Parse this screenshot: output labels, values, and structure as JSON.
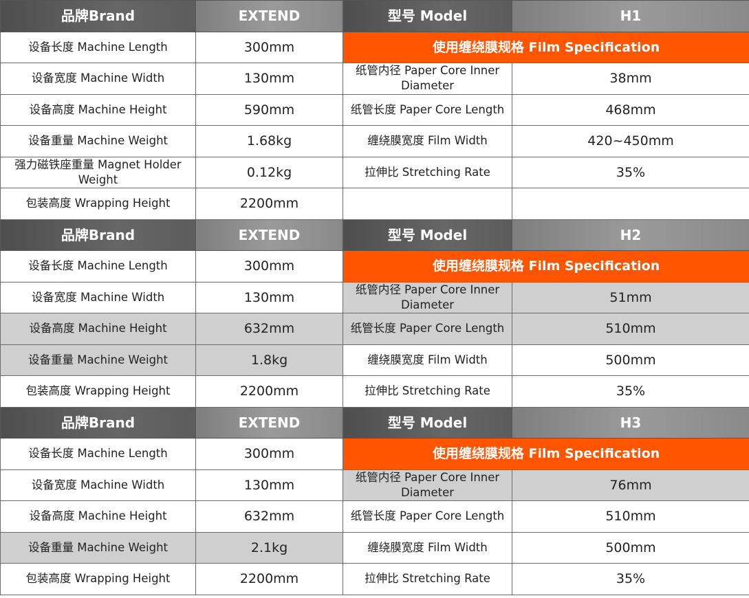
{
  "header_labels": {
    "brand": "品牌Brand",
    "brand_value": "EXTEND",
    "model": "型号 Model"
  },
  "film_spec_title": "使用缠绕膜规格 Film Specification",
  "colors": {
    "orange": "#ff5500",
    "header_dark": "#5a5a5a",
    "header_light": "#8c8c8c",
    "shaded": "#cfcfcf"
  },
  "tables": [
    {
      "model": "H1",
      "rows": [
        {
          "label": "设备长度 Machine Length",
          "value": "300mm",
          "spec_label": null,
          "spec_value": null
        },
        {
          "label": "设备宽度 Machine Width",
          "value": "130mm",
          "spec_label": "纸管内径 Paper Core Inner Diameter",
          "spec_value": "38mm"
        },
        {
          "label": "设备高度 Machine Height",
          "value": "590mm",
          "spec_label": "纸管长度 Paper Core Length",
          "spec_value": "468mm"
        },
        {
          "label": "设备重量 Machine Weight",
          "value": "1.68kg",
          "spec_label": "缠绕膜宽度 Film Width",
          "spec_value": "420~450mm"
        },
        {
          "label": "强力磁铁座重量 Magnet Holder Weight",
          "value": "0.12kg",
          "spec_label": "拉伸比 Stretching Rate",
          "spec_value": "35%"
        },
        {
          "label": "包装高度 Wrapping Height",
          "value": "2200mm",
          "spec_label": "",
          "spec_value": ""
        }
      ]
    },
    {
      "model": "H2",
      "rows": [
        {
          "label": "设备长度 Machine Length",
          "value": "300mm",
          "spec_label": null,
          "spec_value": null
        },
        {
          "label": "设备宽度 Machine Width",
          "value": "130mm",
          "spec_label": "纸管内径 Paper Core Inner Diameter",
          "spec_value": "51mm"
        },
        {
          "label": "设备高度 Machine Height",
          "value": "632mm",
          "spec_label": "纸管长度 Paper Core Length",
          "spec_value": "510mm"
        },
        {
          "label": "设备重量 Machine Weight",
          "value": "1.8kg",
          "spec_label": "缠绕膜宽度 Film Width",
          "spec_value": "500mm"
        },
        {
          "label": "包装高度 Wrapping Height",
          "value": "2200mm",
          "spec_label": "拉伸比 Stretching Rate",
          "spec_value": "35%"
        }
      ]
    },
    {
      "model": "H3",
      "rows": [
        {
          "label": "设备长度 Machine Length",
          "value": "300mm",
          "spec_label": null,
          "spec_value": null
        },
        {
          "label": "设备宽度 Machine Width",
          "value": "130mm",
          "spec_label": "纸管内径 Paper Core Inner Diameter",
          "spec_value": "76mm"
        },
        {
          "label": "设备高度 Machine Height",
          "value": "632mm",
          "spec_label": "纸管长度 Paper Core Length",
          "spec_value": "510mm"
        },
        {
          "label": "设备重量 Machine Weight",
          "value": "2.1kg",
          "spec_label": "缠绕膜宽度 Film Width",
          "spec_value": "500mm"
        },
        {
          "label": "包装高度 Wrapping Height",
          "value": "2200mm",
          "spec_label": "拉伸比 Stretching Rate",
          "spec_value": "35%"
        }
      ]
    }
  ]
}
